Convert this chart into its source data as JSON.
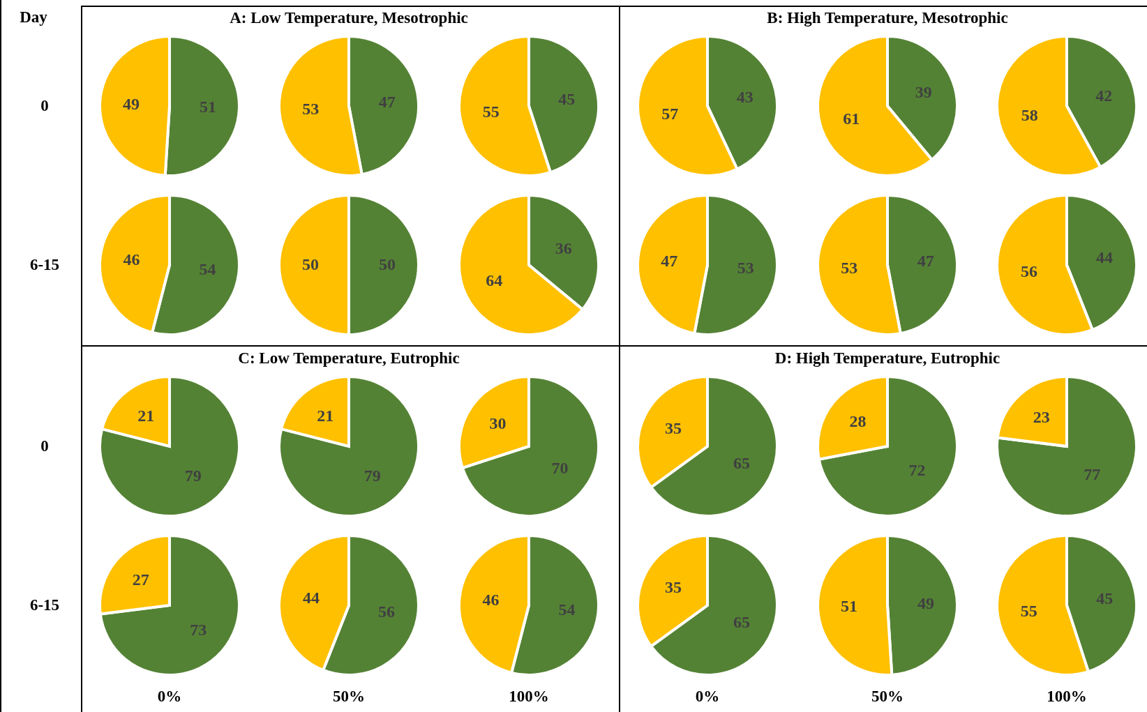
{
  "chart_data": [
    {
      "type": "pie",
      "ylabel": "0",
      "annotations": [
        "Day"
      ],
      "categories": [
        null,
        null
      ],
      "values": [
        51,
        49
      ],
      "colors": [
        "#548235",
        "#ffc000"
      ],
      "data_labels": true
    },
    {
      "type": "pie",
      "title": "A: Low Temperature, Mesotrophic",
      "categories": [
        null,
        null
      ],
      "values": [
        47,
        53
      ],
      "colors": [
        "#548235",
        "#ffc000"
      ],
      "data_labels": true
    },
    {
      "type": "pie",
      "categories": [
        null,
        null
      ],
      "values": [
        45,
        55
      ],
      "colors": [
        "#548235",
        "#ffc000"
      ],
      "data_labels": true
    },
    {
      "type": "pie",
      "ylabel": "6-15",
      "categories": [
        null,
        null
      ],
      "values": [
        54,
        46
      ],
      "colors": [
        "#548235",
        "#ffc000"
      ],
      "data_labels": true
    },
    {
      "type": "pie",
      "categories": [
        null,
        null
      ],
      "values": [
        50,
        50
      ],
      "colors": [
        "#548235",
        "#ffc000"
      ],
      "data_labels": true
    },
    {
      "type": "pie",
      "categories": [
        null,
        null
      ],
      "values": [
        36,
        64
      ],
      "colors": [
        "#548235",
        "#ffc000"
      ],
      "data_labels": true
    },
    {
      "type": "pie",
      "categories": [
        null,
        null
      ],
      "values": [
        43,
        57
      ],
      "colors": [
        "#548235",
        "#ffc000"
      ],
      "data_labels": true
    },
    {
      "type": "pie",
      "title": "B: High Temperature, Mesotrophic",
      "categories": [
        null,
        null
      ],
      "values": [
        39,
        61
      ],
      "colors": [
        "#548235",
        "#ffc000"
      ],
      "data_labels": true
    },
    {
      "type": "pie",
      "categories": [
        null,
        null
      ],
      "values": [
        42,
        58
      ],
      "colors": [
        "#548235",
        "#ffc000"
      ],
      "data_labels": true
    },
    {
      "type": "pie",
      "categories": [
        null,
        null
      ],
      "values": [
        53,
        47
      ],
      "colors": [
        "#548235",
        "#ffc000"
      ],
      "data_labels": true
    },
    {
      "type": "pie",
      "categories": [
        null,
        null
      ],
      "values": [
        47,
        53
      ],
      "colors": [
        "#548235",
        "#ffc000"
      ],
      "data_labels": true
    },
    {
      "type": "pie",
      "categories": [
        null,
        null
      ],
      "values": [
        44,
        56
      ],
      "colors": [
        "#548235",
        "#ffc000"
      ],
      "data_labels": true
    },
    {
      "type": "pie",
      "ylabel": "0",
      "categories": [
        null,
        null
      ],
      "values": [
        79,
        21
      ],
      "colors": [
        "#548235",
        "#ffc000"
      ],
      "data_labels": true
    },
    {
      "type": "pie",
      "title": "C: Low Temperature, Eutrophic",
      "categories": [
        null,
        null
      ],
      "values": [
        79,
        21
      ],
      "colors": [
        "#548235",
        "#ffc000"
      ],
      "data_labels": true
    },
    {
      "type": "pie",
      "categories": [
        null,
        null
      ],
      "values": [
        70,
        30
      ],
      "colors": [
        "#548235",
        "#ffc000"
      ],
      "data_labels": true
    },
    {
      "type": "pie",
      "ylabel": "6-15",
      "xlabel": "0%",
      "categories": [
        null,
        null
      ],
      "values": [
        73,
        27
      ],
      "colors": [
        "#548235",
        "#ffc000"
      ],
      "data_labels": true
    },
    {
      "type": "pie",
      "xlabel": "50%",
      "categories": [
        null,
        null
      ],
      "values": [
        56,
        44
      ],
      "colors": [
        "#548235",
        "#ffc000"
      ],
      "data_labels": true
    },
    {
      "type": "pie",
      "xlabel": "100%",
      "categories": [
        null,
        null
      ],
      "values": [
        54,
        46
      ],
      "colors": [
        "#548235",
        "#ffc000"
      ],
      "data_labels": true
    },
    {
      "type": "pie",
      "categories": [
        null,
        null
      ],
      "values": [
        65,
        35
      ],
      "colors": [
        "#548235",
        "#ffc000"
      ],
      "data_labels": true
    },
    {
      "type": "pie",
      "title": "D: High Temperature, Eutrophic",
      "categories": [
        null,
        null
      ],
      "values": [
        72,
        28
      ],
      "colors": [
        "#548235",
        "#ffc000"
      ],
      "data_labels": true
    },
    {
      "type": "pie",
      "categories": [
        null,
        null
      ],
      "values": [
        77,
        23
      ],
      "colors": [
        "#548235",
        "#ffc000"
      ],
      "data_labels": true
    },
    {
      "type": "pie",
      "xlabel": "0%",
      "categories": [
        null,
        null
      ],
      "values": [
        65,
        35
      ],
      "colors": [
        "#548235",
        "#ffc000"
      ],
      "data_labels": true
    },
    {
      "type": "pie",
      "xlabel": "50%",
      "categories": [
        null,
        null
      ],
      "values": [
        49,
        51
      ],
      "colors": [
        "#548235",
        "#ffc000"
      ],
      "data_labels": true
    },
    {
      "type": "pie",
      "xlabel": "100%",
      "categories": [
        null,
        null
      ],
      "values": [
        45,
        55
      ],
      "colors": [
        "#548235",
        "#ffc000"
      ],
      "data_labels": true
    }
  ]
}
